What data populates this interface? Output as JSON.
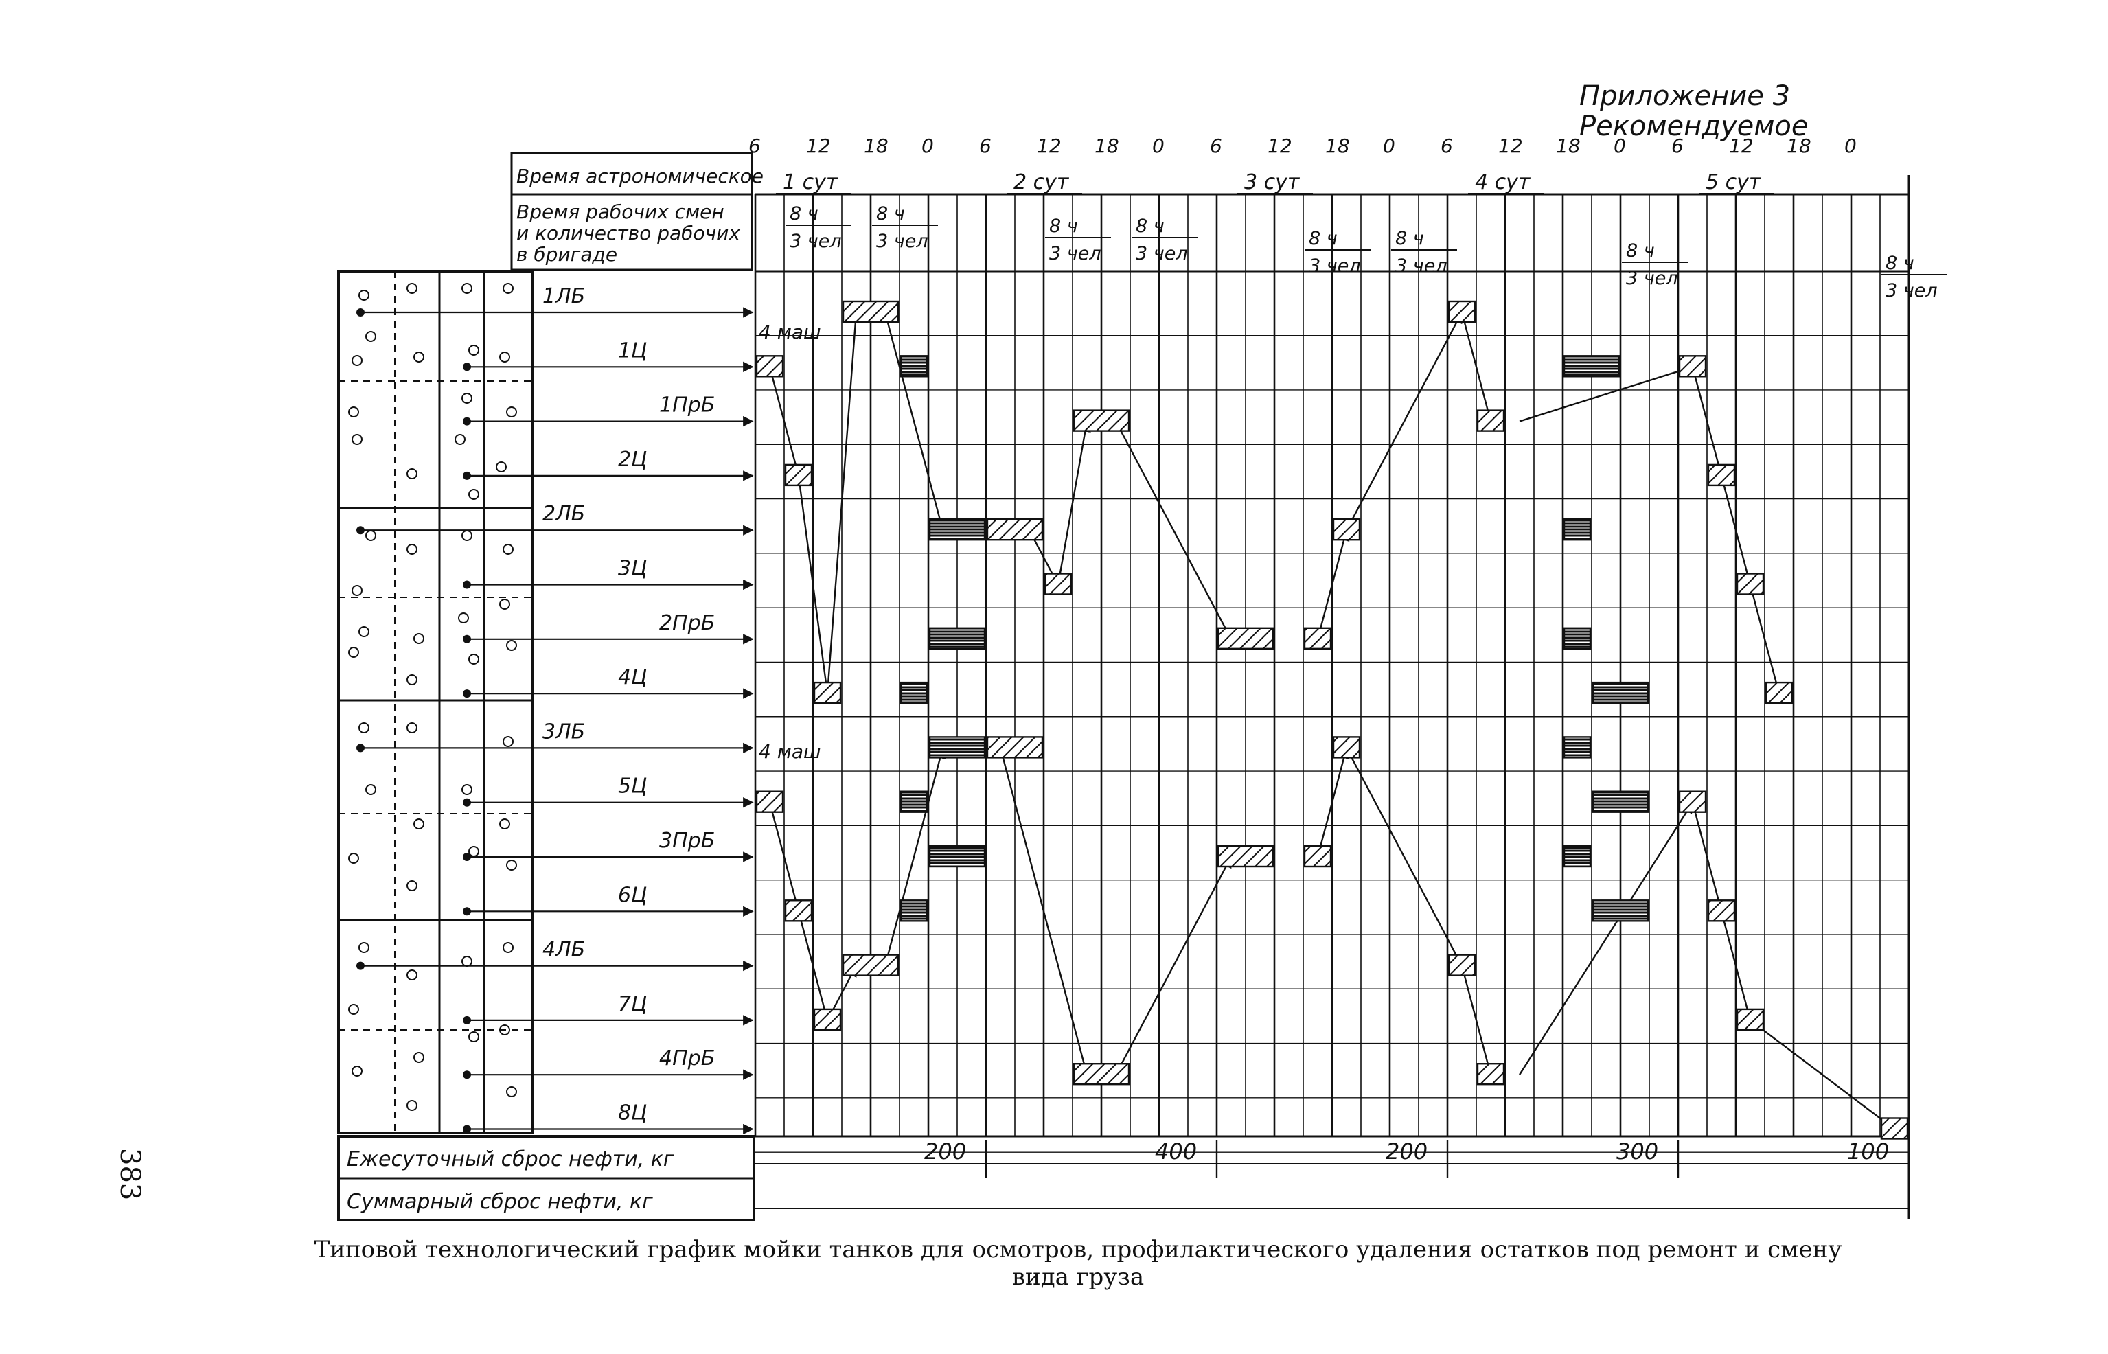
{
  "header": {
    "appendix": "Приложение 3",
    "recommended": "Рекомендуемое"
  },
  "page_number": "383",
  "caption": "Типовой технологический график мойки танков для осмотров, профилактического удаления остатков под ремонт и смену вида груза",
  "table": {
    "time_row_label": "Время астрономическое",
    "shift_label_1": "Время рабочих смен",
    "shift_label_2": "и количество рабочих",
    "shift_label_3": "в бригаде",
    "oil_daily_label": "Ежесуточный сброс нефти, кг",
    "oil_total_label": "Суммарный сброс нефти, кг"
  },
  "hours_top": [
    "6",
    "12",
    "18",
    "0",
    "6",
    "12",
    "18",
    "0",
    "6",
    "12",
    "18",
    "0",
    "6",
    "12",
    "18",
    "0",
    "6",
    "12",
    "18",
    "0"
  ],
  "days": [
    "1 сут",
    "2 сут",
    "3 сут",
    "4 сут",
    "5 сут"
  ],
  "shifts": [
    {
      "hours": "8 ч",
      "people": "3 чел",
      "col": 1
    },
    {
      "hours": "8 ч",
      "people": "3 чел",
      "col": 4
    },
    {
      "hours": "8 ч",
      "people": "3 чел",
      "col": 10
    },
    {
      "hours": "8 ч",
      "people": "3 чел",
      "col": 13
    },
    {
      "hours": "8 ч",
      "people": "3 чел",
      "col": 19
    },
    {
      "hours": "8 ч",
      "people": "3 чел",
      "col": 22
    },
    {
      "hours": "8 ч",
      "people": "3 чел",
      "col": 30
    },
    {
      "hours": "8 ч",
      "people": "3 чел",
      "col": 39
    }
  ],
  "machines_note": "4 маш",
  "tanks": [
    "1ЛБ",
    "1Ц",
    "1ПрБ",
    "2Ц",
    "2ЛБ",
    "3Ц",
    "2ПрБ",
    "4Ц",
    "3ЛБ",
    "5Ц",
    "3ПрБ",
    "6Ц",
    "4ЛБ",
    "7Ц",
    "4ПрБ",
    "8Ц"
  ],
  "daily_oil": [
    "200",
    "400",
    "200",
    "300",
    "100"
  ],
  "chart_data": {
    "type": "gantt",
    "time_unit": "3-hour columns",
    "bars": [
      {
        "row": 1,
        "start": 0,
        "len": 1,
        "fill": "hatch"
      },
      {
        "row": 3,
        "start": 1,
        "len": 1,
        "fill": "hatch"
      },
      {
        "row": 7,
        "start": 2,
        "len": 1,
        "fill": "hatch"
      },
      {
        "row": 0,
        "start": 3,
        "len": 2,
        "fill": "hatch"
      },
      {
        "row": 1,
        "start": 5,
        "len": 1,
        "fill": "lines"
      },
      {
        "row": 4,
        "start": 6,
        "len": 2,
        "fill": "lines"
      },
      {
        "row": 4,
        "start": 8,
        "len": 2,
        "fill": "hatch"
      },
      {
        "row": 5,
        "start": 10,
        "len": 1,
        "fill": "hatch"
      },
      {
        "row": 2,
        "start": 11,
        "len": 2,
        "fill": "hatch"
      },
      {
        "row": 6,
        "start": 6,
        "len": 2,
        "fill": "lines"
      },
      {
        "row": 7,
        "start": 5,
        "len": 1,
        "fill": "lines"
      },
      {
        "row": 6,
        "start": 16,
        "len": 2,
        "fill": "hatch"
      },
      {
        "row": 6,
        "start": 19,
        "len": 1,
        "fill": "hatch"
      },
      {
        "row": 4,
        "start": 20,
        "len": 1,
        "fill": "hatch"
      },
      {
        "row": 0,
        "start": 24,
        "len": 1,
        "fill": "hatch"
      },
      {
        "row": 2,
        "start": 25,
        "len": 1,
        "fill": "hatch"
      },
      {
        "row": 1,
        "start": 28,
        "len": 2,
        "fill": "lines"
      },
      {
        "row": 1,
        "start": 32,
        "len": 1,
        "fill": "hatch"
      },
      {
        "row": 3,
        "start": 33,
        "len": 1,
        "fill": "hatch"
      },
      {
        "row": 4,
        "start": 28,
        "len": 1,
        "fill": "lines"
      },
      {
        "row": 5,
        "start": 34,
        "len": 1,
        "fill": "hatch"
      },
      {
        "row": 6,
        "start": 28,
        "len": 1,
        "fill": "lines"
      },
      {
        "row": 7,
        "start": 29,
        "len": 2,
        "fill": "lines"
      },
      {
        "row": 7,
        "start": 35,
        "len": 1,
        "fill": "hatch"
      },
      {
        "row": 9,
        "start": 0,
        "len": 1,
        "fill": "hatch"
      },
      {
        "row": 11,
        "start": 1,
        "len": 1,
        "fill": "hatch"
      },
      {
        "row": 13,
        "start": 2,
        "len": 1,
        "fill": "hatch"
      },
      {
        "row": 12,
        "start": 3,
        "len": 2,
        "fill": "hatch"
      },
      {
        "row": 8,
        "start": 6,
        "len": 2,
        "fill": "lines"
      },
      {
        "row": 8,
        "start": 8,
        "len": 2,
        "fill": "hatch"
      },
      {
        "row": 9,
        "start": 5,
        "len": 1,
        "fill": "lines"
      },
      {
        "row": 10,
        "start": 6,
        "len": 2,
        "fill": "lines"
      },
      {
        "row": 11,
        "start": 5,
        "len": 1,
        "fill": "lines"
      },
      {
        "row": 14,
        "start": 11,
        "len": 2,
        "fill": "hatch"
      },
      {
        "row": 10,
        "start": 16,
        "len": 2,
        "fill": "hatch"
      },
      {
        "row": 10,
        "start": 19,
        "len": 1,
        "fill": "hatch"
      },
      {
        "row": 8,
        "start": 20,
        "len": 1,
        "fill": "hatch"
      },
      {
        "row": 12,
        "start": 24,
        "len": 1,
        "fill": "hatch"
      },
      {
        "row": 14,
        "start": 25,
        "len": 1,
        "fill": "hatch"
      },
      {
        "row": 8,
        "start": 28,
        "len": 1,
        "fill": "lines"
      },
      {
        "row": 9,
        "start": 29,
        "len": 2,
        "fill": "lines"
      },
      {
        "row": 10,
        "start": 28,
        "len": 1,
        "fill": "lines"
      },
      {
        "row": 11,
        "start": 29,
        "len": 2,
        "fill": "lines"
      },
      {
        "row": 9,
        "start": 32,
        "len": 1,
        "fill": "hatch"
      },
      {
        "row": 11,
        "start": 33,
        "len": 1,
        "fill": "hatch"
      },
      {
        "row": 13,
        "start": 34,
        "len": 1,
        "fill": "hatch"
      },
      {
        "row": 15,
        "start": 39,
        "len": 1,
        "fill": "hatch"
      }
    ],
    "arrows": [
      [
        [
          0,
          1
        ],
        [
          1,
          3
        ]
      ],
      [
        [
          1,
          3
        ],
        [
          2,
          7
        ]
      ],
      [
        [
          2,
          7
        ],
        [
          3,
          0
        ]
      ],
      [
        [
          4,
          0
        ],
        [
          6,
          4
        ]
      ],
      [
        [
          9,
          4
        ],
        [
          10,
          5
        ]
      ],
      [
        [
          10,
          5
        ],
        [
          11,
          2
        ]
      ],
      [
        [
          12,
          2
        ],
        [
          16,
          6
        ]
      ],
      [
        [
          19,
          6
        ],
        [
          20,
          4
        ]
      ],
      [
        [
          20,
          4
        ],
        [
          24,
          0
        ]
      ],
      [
        [
          24,
          0
        ],
        [
          25,
          2
        ]
      ],
      [
        [
          26,
          2
        ],
        [
          32,
          1
        ]
      ],
      [
        [
          32,
          1
        ],
        [
          33,
          3
        ]
      ],
      [
        [
          33,
          3
        ],
        [
          34,
          5
        ]
      ],
      [
        [
          34,
          5
        ],
        [
          35,
          7
        ]
      ],
      [
        [
          0,
          9
        ],
        [
          1,
          11
        ]
      ],
      [
        [
          1,
          11
        ],
        [
          2,
          13
        ]
      ],
      [
        [
          2,
          13
        ],
        [
          3,
          12
        ]
      ],
      [
        [
          4,
          12
        ],
        [
          6,
          8
        ]
      ],
      [
        [
          8,
          8
        ],
        [
          11,
          14
        ]
      ],
      [
        [
          12,
          14
        ],
        [
          16,
          10
        ]
      ],
      [
        [
          19,
          10
        ],
        [
          20,
          8
        ]
      ],
      [
        [
          20,
          8
        ],
        [
          24,
          12
        ]
      ],
      [
        [
          24,
          12
        ],
        [
          25,
          14
        ]
      ],
      [
        [
          26,
          14
        ],
        [
          32,
          9
        ]
      ],
      [
        [
          32,
          9
        ],
        [
          33,
          11
        ]
      ],
      [
        [
          33,
          11
        ],
        [
          34,
          13
        ]
      ],
      [
        [
          34,
          13
        ],
        [
          39,
          15
        ]
      ]
    ]
  }
}
